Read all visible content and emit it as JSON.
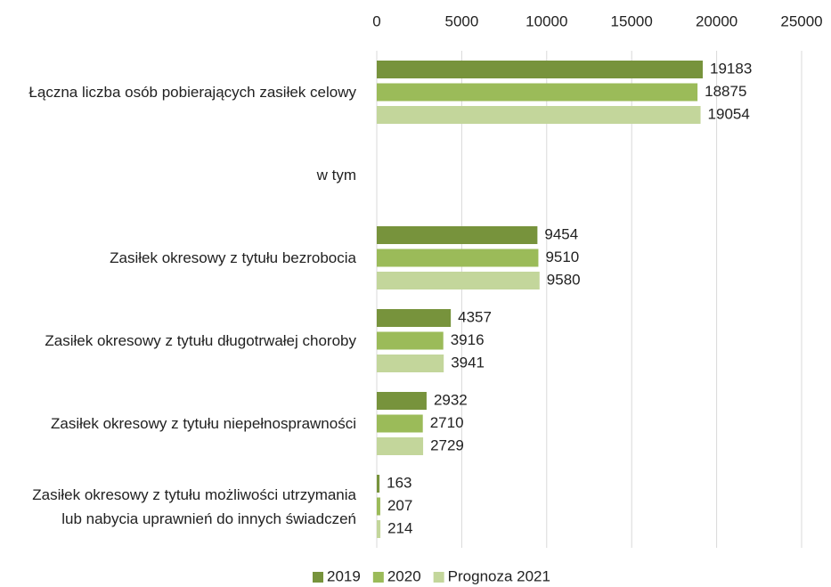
{
  "chart_data": {
    "type": "hbar",
    "categories": [
      "Łączna liczba osób pobierających zasiłek celowy",
      "w tym",
      "Zasiłek okresowy z tytułu bezrobocia",
      "Zasiłek okresowy z tytułu długotrwałej choroby",
      "Zasiłek okresowy z tytułu niepełnosprawności",
      "Zasiłek okresowy z tytułu możliwości utrzymania lub nabycia uprawnień do innych świadczeń"
    ],
    "series": [
      {
        "name": "2019",
        "color": "#77933c",
        "values": [
          19183,
          null,
          9454,
          4357,
          2932,
          163
        ]
      },
      {
        "name": "2020",
        "color": "#9bbb59",
        "values": [
          18875,
          null,
          9510,
          3916,
          2710,
          207
        ]
      },
      {
        "name": "Prognoza 2021",
        "color": "#c3d69b",
        "values": [
          19054,
          null,
          9580,
          3941,
          2729,
          214
        ]
      }
    ],
    "xlim": [
      0,
      25000
    ],
    "xticks": [
      0,
      5000,
      10000,
      15000,
      20000,
      25000
    ],
    "grid": true,
    "legend": "bottom"
  }
}
